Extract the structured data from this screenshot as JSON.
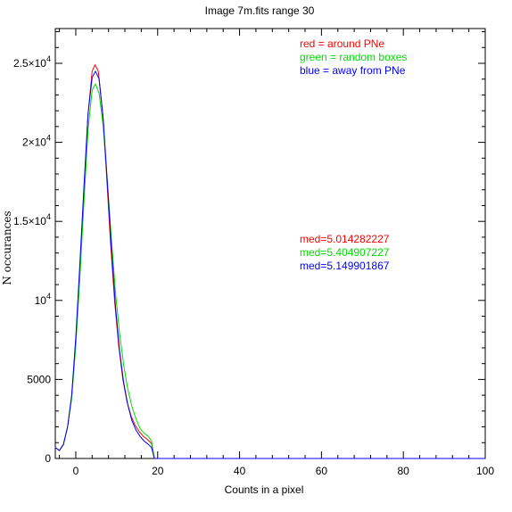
{
  "chart_data": {
    "type": "line",
    "title": "Image 7m.fits   range 30",
    "xlabel": "Counts in a pixel",
    "ylabel": "N occurances",
    "xlim": [
      -5,
      100
    ],
    "ylim": [
      0,
      27200
    ],
    "x_ticks": [
      0,
      20,
      40,
      60,
      80,
      100
    ],
    "x_tick_labels": [
      "0",
      "20",
      "40",
      "60",
      "80",
      "100"
    ],
    "y_ticks": [
      0,
      5000,
      10000,
      15000,
      20000,
      25000
    ],
    "y_tick_labels": [
      {
        "mantissa": "0",
        "exp": ""
      },
      {
        "mantissa": "5000",
        "exp": ""
      },
      {
        "mantissa": "10",
        "exp": "4"
      },
      {
        "mantissa": "1.5×10",
        "exp": "4"
      },
      {
        "mantissa": "2×10",
        "exp": "4"
      },
      {
        "mantissa": "2.5×10",
        "exp": "4"
      }
    ],
    "legend": [
      {
        "text": "red = around PNe",
        "color": "#ff0000"
      },
      {
        "text": "green = random boxes",
        "color": "#00dd00"
      },
      {
        "text": "blue = away from PNe",
        "color": "#0000ff"
      }
    ],
    "medians": [
      {
        "text": "med=5.014282227",
        "color": "#ff0000"
      },
      {
        "text": "med=5.404907227",
        "color": "#00dd00"
      },
      {
        "text": "med=5.149901867",
        "color": "#0000ff"
      }
    ],
    "series": [
      {
        "color": "#ff0000",
        "points": [
          [
            -5,
            700
          ],
          [
            -4,
            500
          ],
          [
            -3,
            900
          ],
          [
            -2,
            2000
          ],
          [
            -1,
            3900
          ],
          [
            0,
            7500
          ],
          [
            1,
            12000
          ],
          [
            2,
            17000
          ],
          [
            3,
            21800
          ],
          [
            4,
            24500
          ],
          [
            4.7,
            24900
          ],
          [
            5.5,
            24500
          ],
          [
            6.5,
            22000
          ],
          [
            7.5,
            18000
          ],
          [
            8.5,
            13600
          ],
          [
            9.5,
            9900
          ],
          [
            10.5,
            7100
          ],
          [
            11.5,
            5000
          ],
          [
            12.5,
            3600
          ],
          [
            13.5,
            2700
          ],
          [
            14.5,
            2100
          ],
          [
            15.5,
            1700
          ],
          [
            16.5,
            1400
          ],
          [
            17.5,
            1200
          ],
          [
            18.5,
            950
          ],
          [
            19.2,
            0
          ],
          [
            19.5,
            0
          ],
          [
            100,
            0
          ]
        ]
      },
      {
        "color": "#00dd00",
        "points": [
          [
            -5,
            700
          ],
          [
            -4,
            500
          ],
          [
            -3,
            900
          ],
          [
            -2,
            2000
          ],
          [
            -1,
            3800
          ],
          [
            0,
            7100
          ],
          [
            1,
            11500
          ],
          [
            2,
            16200
          ],
          [
            3,
            20800
          ],
          [
            4,
            23300
          ],
          [
            4.8,
            23700
          ],
          [
            5.7,
            23100
          ],
          [
            6.7,
            21000
          ],
          [
            7.7,
            17600
          ],
          [
            8.7,
            13900
          ],
          [
            9.7,
            10500
          ],
          [
            10.7,
            7900
          ],
          [
            11.7,
            5900
          ],
          [
            12.7,
            4400
          ],
          [
            13.7,
            3300
          ],
          [
            14.7,
            2500
          ],
          [
            15.7,
            1900
          ],
          [
            16.7,
            1600
          ],
          [
            17.7,
            1400
          ],
          [
            18.5,
            1100
          ],
          [
            19.2,
            0
          ],
          [
            19.5,
            0
          ],
          [
            100,
            0
          ]
        ]
      },
      {
        "color": "#0000ff",
        "points": [
          [
            -5,
            700
          ],
          [
            -4,
            500
          ],
          [
            -3,
            900
          ],
          [
            -2,
            2000
          ],
          [
            -1,
            4000
          ],
          [
            0,
            7600
          ],
          [
            1,
            12300
          ],
          [
            2,
            17200
          ],
          [
            3,
            21800
          ],
          [
            4,
            24100
          ],
          [
            4.8,
            24500
          ],
          [
            5.7,
            24000
          ],
          [
            6.7,
            21500
          ],
          [
            7.7,
            17500
          ],
          [
            8.7,
            13300
          ],
          [
            9.7,
            9600
          ],
          [
            10.7,
            6800
          ],
          [
            11.7,
            4800
          ],
          [
            12.7,
            3400
          ],
          [
            13.7,
            2400
          ],
          [
            14.7,
            1800
          ],
          [
            15.7,
            1400
          ],
          [
            16.7,
            1100
          ],
          [
            17.7,
            900
          ],
          [
            18.5,
            700
          ],
          [
            19.2,
            0
          ],
          [
            19.5,
            0
          ],
          [
            100,
            0
          ]
        ]
      }
    ]
  }
}
